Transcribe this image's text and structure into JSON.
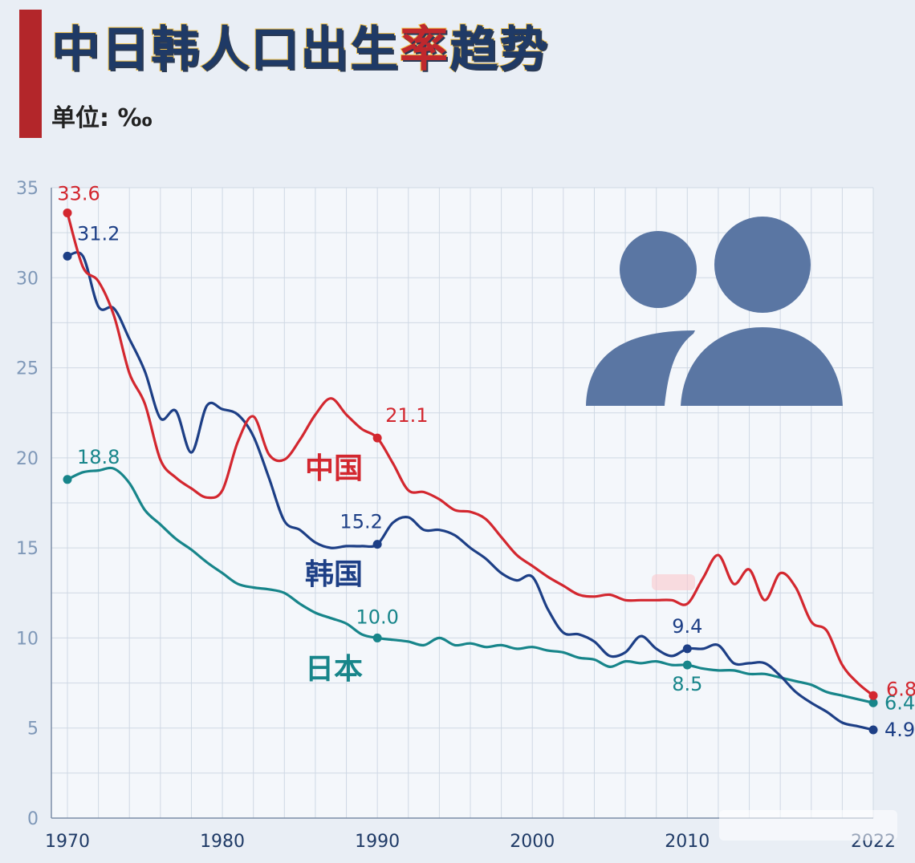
{
  "header": {
    "title_main": "中日韩人口出生",
    "title_accent": "率",
    "title_end": "趋势",
    "unit_label": "单位: ‰"
  },
  "colors": {
    "china": "#d3272f",
    "korea": "#1d3f86",
    "japan": "#17858a",
    "accent": "#b3262a"
  },
  "icons": {
    "people": "people-icon"
  },
  "chart_data": {
    "type": "line",
    "title": "中日韩人口出生率趋势",
    "ylabel": "单位: ‰",
    "xlim": [
      1969.5,
      2022
    ],
    "ylim": [
      0,
      35
    ],
    "x_ticks": [
      1970,
      1980,
      1990,
      2000,
      2010,
      2022
    ],
    "x_tick_labels": [
      "1970",
      "1980",
      "1990",
      "2000",
      "2010",
      "2022"
    ],
    "y_ticks": [
      0,
      5,
      10,
      15,
      20,
      25,
      30,
      35
    ],
    "y_tick_labels": [
      "0",
      "5",
      "10",
      "15",
      "20",
      "25",
      "30",
      "35"
    ],
    "grid": true,
    "legend": "inline labels",
    "series": [
      {
        "name": "中国",
        "color": "#d3272f",
        "x": [
          1970,
          1971,
          1972,
          1973,
          1974,
          1975,
          1976,
          1977,
          1978,
          1979,
          1980,
          1981,
          1982,
          1983,
          1984,
          1985,
          1986,
          1987,
          1988,
          1989,
          1990,
          1991,
          1992,
          1993,
          1994,
          1995,
          1996,
          1997,
          1998,
          1999,
          2000,
          2001,
          2002,
          2003,
          2004,
          2005,
          2006,
          2007,
          2008,
          2009,
          2010,
          2011,
          2012,
          2013,
          2014,
          2015,
          2016,
          2017,
          2018,
          2019,
          2020,
          2021,
          2022
        ],
        "y": [
          33.6,
          30.6,
          29.8,
          27.9,
          24.7,
          23.0,
          19.9,
          18.9,
          18.3,
          17.8,
          18.2,
          20.9,
          22.3,
          20.2,
          19.9,
          21.0,
          22.4,
          23.3,
          22.4,
          21.6,
          21.1,
          19.7,
          18.2,
          18.1,
          17.7,
          17.1,
          17.0,
          16.6,
          15.6,
          14.6,
          14.0,
          13.4,
          12.9,
          12.4,
          12.3,
          12.4,
          12.1,
          12.1,
          12.1,
          12.1,
          11.9,
          13.3,
          14.6,
          13.0,
          13.8,
          12.1,
          13.6,
          12.8,
          10.9,
          10.4,
          8.5,
          7.5,
          6.8
        ],
        "labels": [
          {
            "x": 1970,
            "y": 33.6,
            "text": "33.6"
          },
          {
            "x": 1990,
            "y": 21.1,
            "text": "21.1"
          },
          {
            "x": 2022,
            "y": 6.8,
            "text": "6.8"
          }
        ],
        "series_label": "中国"
      },
      {
        "name": "韩国",
        "color": "#1d3f86",
        "x": [
          1970,
          1971,
          1972,
          1973,
          1974,
          1975,
          1976,
          1977,
          1978,
          1979,
          1980,
          1981,
          1982,
          1983,
          1984,
          1985,
          1986,
          1987,
          1988,
          1989,
          1990,
          1991,
          1992,
          1993,
          1994,
          1995,
          1996,
          1997,
          1998,
          1999,
          2000,
          2001,
          2002,
          2003,
          2004,
          2005,
          2006,
          2007,
          2008,
          2009,
          2010,
          2011,
          2012,
          2013,
          2014,
          2015,
          2016,
          2017,
          2018,
          2019,
          2020,
          2021,
          2022
        ],
        "y": [
          31.2,
          31.2,
          28.4,
          28.3,
          26.6,
          24.8,
          22.2,
          22.6,
          20.3,
          22.9,
          22.7,
          22.4,
          21.2,
          18.9,
          16.5,
          16.0,
          15.3,
          15.0,
          15.1,
          15.1,
          15.2,
          16.4,
          16.7,
          16.0,
          16.0,
          15.7,
          15.0,
          14.4,
          13.6,
          13.2,
          13.4,
          11.6,
          10.3,
          10.2,
          9.8,
          9.0,
          9.2,
          10.1,
          9.4,
          9.0,
          9.4,
          9.4,
          9.6,
          8.6,
          8.6,
          8.6,
          7.9,
          7.0,
          6.4,
          5.9,
          5.3,
          5.1,
          4.9
        ],
        "labels": [
          {
            "x": 1970,
            "y": 31.2,
            "text": "31.2"
          },
          {
            "x": 1990,
            "y": 15.2,
            "text": "15.2"
          },
          {
            "x": 2010,
            "y": 9.4,
            "text": "9.4"
          },
          {
            "x": 2022,
            "y": 4.9,
            "text": "4.9"
          }
        ],
        "series_label": "韩国"
      },
      {
        "name": "日本",
        "color": "#17858a",
        "x": [
          1970,
          1971,
          1972,
          1973,
          1974,
          1975,
          1976,
          1977,
          1978,
          1979,
          1980,
          1981,
          1982,
          1983,
          1984,
          1985,
          1986,
          1987,
          1988,
          1989,
          1990,
          1991,
          1992,
          1993,
          1994,
          1995,
          1996,
          1997,
          1998,
          1999,
          2000,
          2001,
          2002,
          2003,
          2004,
          2005,
          2006,
          2007,
          2008,
          2009,
          2010,
          2011,
          2012,
          2013,
          2014,
          2015,
          2016,
          2017,
          2018,
          2019,
          2020,
          2021,
          2022
        ],
        "y": [
          18.8,
          19.2,
          19.3,
          19.4,
          18.6,
          17.1,
          16.3,
          15.5,
          14.9,
          14.2,
          13.6,
          13.0,
          12.8,
          12.7,
          12.5,
          11.9,
          11.4,
          11.1,
          10.8,
          10.2,
          10.0,
          9.9,
          9.8,
          9.6,
          10.0,
          9.6,
          9.7,
          9.5,
          9.6,
          9.4,
          9.5,
          9.3,
          9.2,
          8.9,
          8.8,
          8.4,
          8.7,
          8.6,
          8.7,
          8.5,
          8.5,
          8.3,
          8.2,
          8.2,
          8.0,
          8.0,
          7.8,
          7.6,
          7.4,
          7.0,
          6.8,
          6.6,
          6.4
        ],
        "labels": [
          {
            "x": 1970,
            "y": 18.8,
            "text": "18.8"
          },
          {
            "x": 1990,
            "y": 10.0,
            "text": "10.0"
          },
          {
            "x": 2010,
            "y": 8.5,
            "text": "8.5"
          },
          {
            "x": 2022,
            "y": 6.4,
            "text": "6.4"
          }
        ],
        "series_label": "日本"
      }
    ]
  }
}
